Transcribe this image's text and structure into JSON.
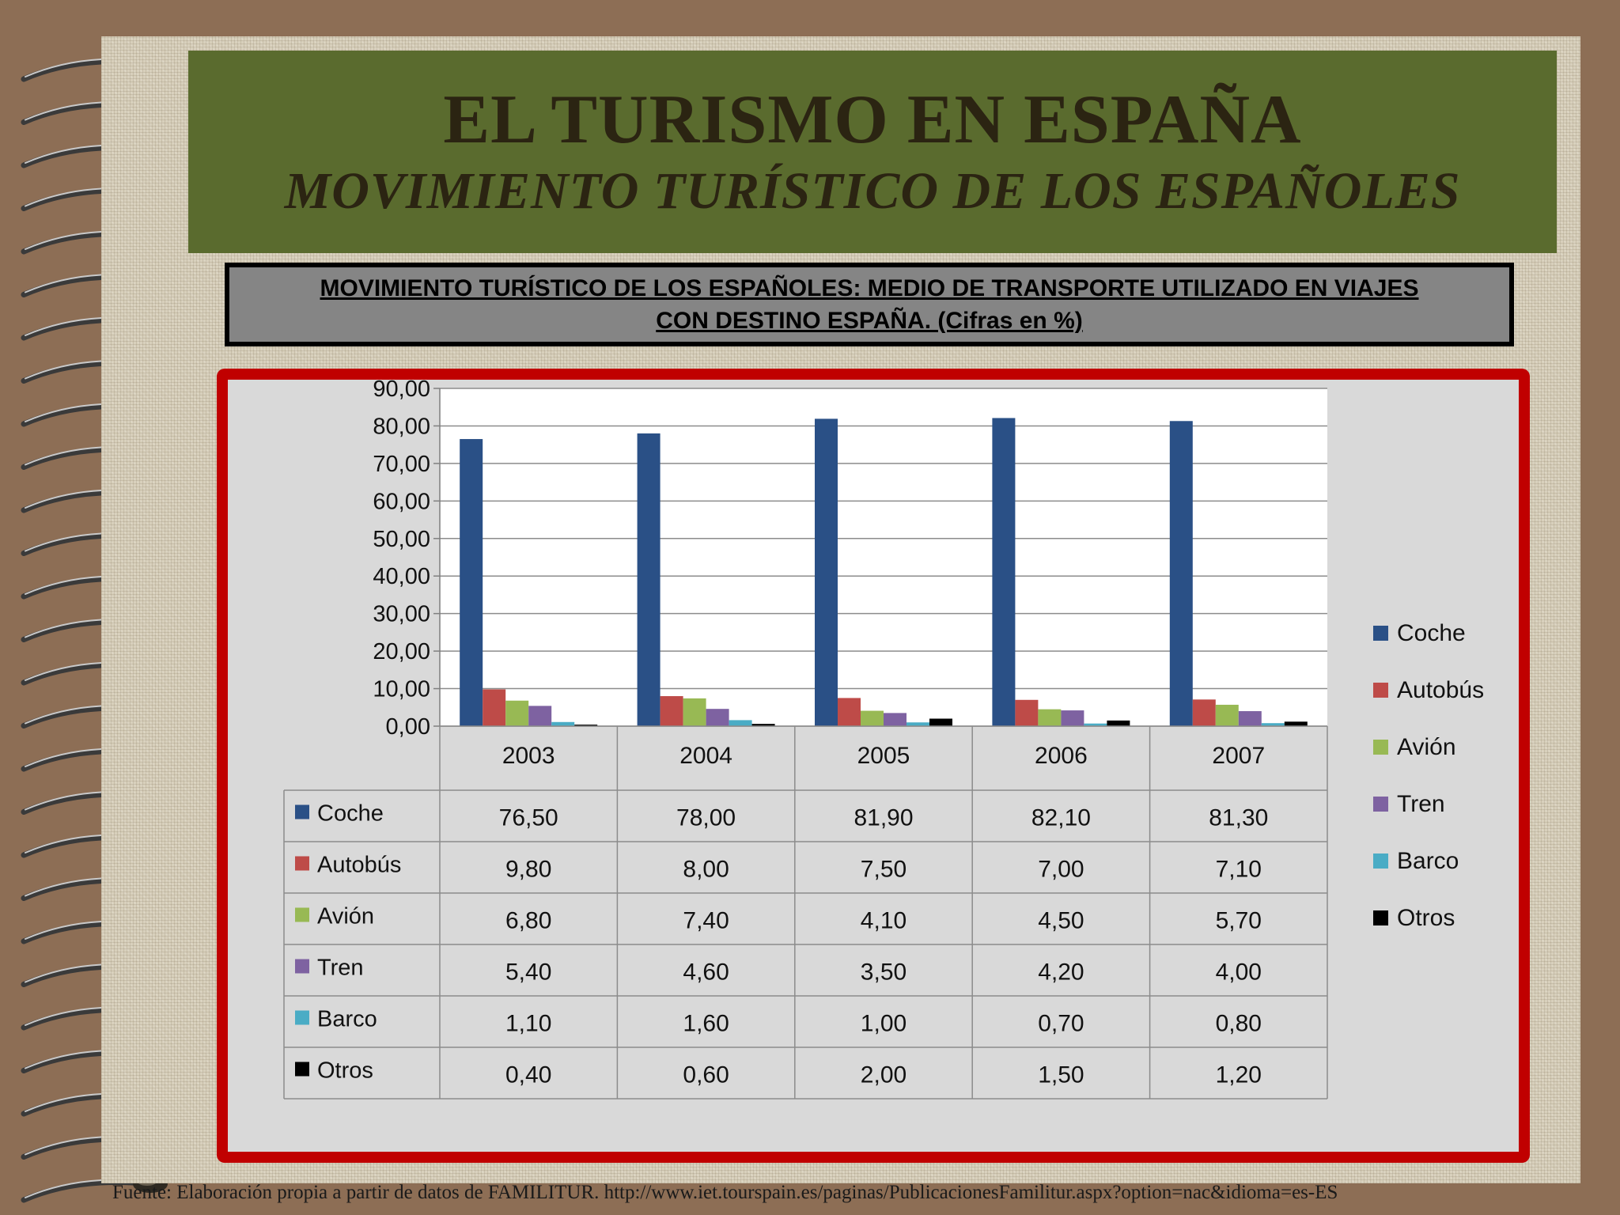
{
  "header": {
    "title": "EL TURISMO EN ESPAÑA",
    "subtitle": "MOVIMIENTO TURÍSTICO DE LOS ESPAÑOLES"
  },
  "chart_heading": {
    "line1": "MOVIMIENTO TURÍSTICO DE LOS ESPAÑOLES: MEDIO DE TRANSPORTE UTILIZADO EN VIAJES",
    "line2": "CON DESTINO ESPAÑA. (Cifras en %)"
  },
  "chart_data": {
    "type": "bar",
    "title": "MOVIMIENTO TURÍSTICO DE LOS ESPAÑOLES: MEDIO DE TRANSPORTE UTILIZADO EN VIAJES CON DESTINO ESPAÑA. (Cifras en %)",
    "categories": [
      "2003",
      "2004",
      "2005",
      "2006",
      "2007"
    ],
    "series": [
      {
        "name": "Coche",
        "color": "#2a5086",
        "values": [
          76.5,
          78.0,
          81.9,
          82.1,
          81.3
        ],
        "labels": [
          "76,50",
          "78,00",
          "81,90",
          "82,10",
          "81,30"
        ]
      },
      {
        "name": "Autobús",
        "color": "#be4b48",
        "values": [
          9.8,
          8.0,
          7.5,
          7.0,
          7.1
        ],
        "labels": [
          "9,80",
          "8,00",
          "7,50",
          "7,00",
          "7,10"
        ]
      },
      {
        "name": "Avión",
        "color": "#98b954",
        "values": [
          6.8,
          7.4,
          4.1,
          4.5,
          5.7
        ],
        "labels": [
          "6,80",
          "7,40",
          "4,10",
          "4,50",
          "5,70"
        ]
      },
      {
        "name": "Tren",
        "color": "#7e62a1",
        "values": [
          5.4,
          4.6,
          3.5,
          4.2,
          4.0
        ],
        "labels": [
          "5,40",
          "4,60",
          "3,50",
          "4,20",
          "4,00"
        ]
      },
      {
        "name": "Barco",
        "color": "#4aacc5",
        "values": [
          1.1,
          1.6,
          1.0,
          0.7,
          0.8
        ],
        "labels": [
          "1,10",
          "1,60",
          "1,00",
          "0,70",
          "0,80"
        ]
      },
      {
        "name": "Otros",
        "color": "#000000",
        "values": [
          0.4,
          0.6,
          2.0,
          1.5,
          1.2
        ],
        "labels": [
          "0,40",
          "0,60",
          "2,00",
          "1,50",
          "1,20"
        ]
      }
    ],
    "ylim": [
      0,
      90
    ],
    "yticks": [
      0,
      10,
      20,
      30,
      40,
      50,
      60,
      70,
      80,
      90
    ],
    "ytick_labels": [
      "0,00",
      "10,00",
      "20,00",
      "30,00",
      "40,00",
      "50,00",
      "60,00",
      "70,00",
      "80,00",
      "90,00"
    ],
    "grid": true,
    "legend": "right",
    "data_table": true
  },
  "source": "Fuente: Elaboración propia a partir de datos de FAMILITUR. http://www.iet.tourspain.es/paginas/PublicacionesFamilitur.aspx?option=nac&idioma=es-ES"
}
